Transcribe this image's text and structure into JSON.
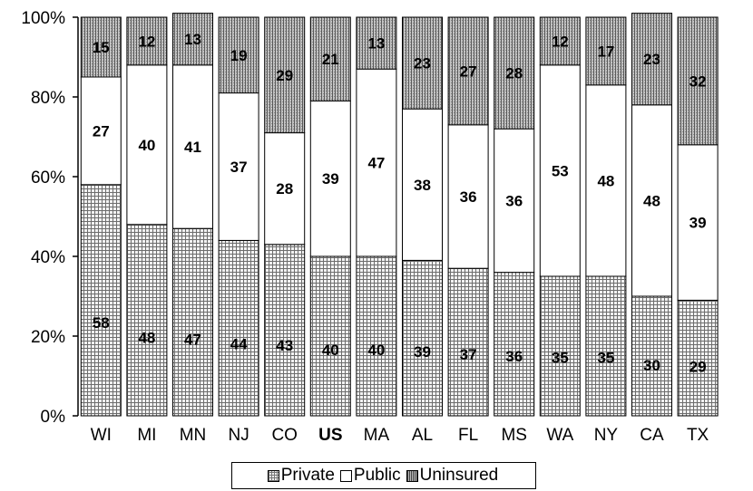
{
  "chart_data": {
    "type": "bar",
    "stacked": true,
    "categories": [
      "WI",
      "MI",
      "MN",
      "NJ",
      "CO",
      "US",
      "MA",
      "AL",
      "FL",
      "MS",
      "WA",
      "NY",
      "CA",
      "TX"
    ],
    "highlight_category": "US",
    "series": [
      {
        "name": "Private",
        "values": [
          58,
          48,
          47,
          44,
          43,
          40,
          40,
          39,
          37,
          36,
          35,
          35,
          30,
          29
        ]
      },
      {
        "name": "Public",
        "values": [
          27,
          40,
          41,
          37,
          28,
          39,
          47,
          38,
          36,
          36,
          53,
          48,
          48,
          39
        ]
      },
      {
        "name": "Uninsured",
        "values": [
          15,
          12,
          13,
          19,
          29,
          21,
          13,
          23,
          27,
          28,
          12,
          17,
          23,
          32
        ]
      }
    ],
    "ylim": [
      0,
      100
    ],
    "yticks": [
      "0%",
      "20%",
      "40%",
      "60%",
      "80%",
      "100%"
    ],
    "legend_position": "bottom",
    "grid": false,
    "colors": {
      "private": "#d8d8d8",
      "public": "#ffffff",
      "uninsured": "#9a9a9a"
    }
  }
}
